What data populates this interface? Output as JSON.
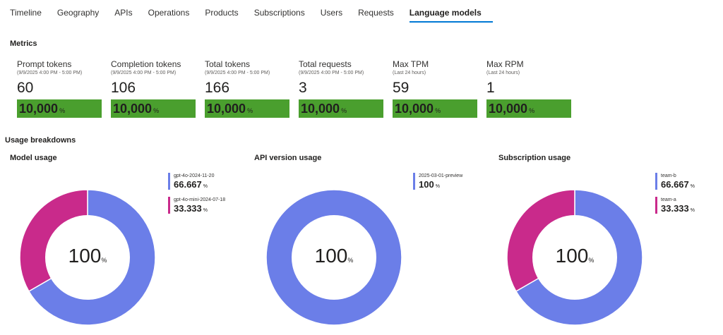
{
  "tabs": [
    "Timeline",
    "Geography",
    "APIs",
    "Operations",
    "Products",
    "Subscriptions",
    "Users",
    "Requests",
    "Language models"
  ],
  "active_tab": "Language models",
  "metrics_title": "Metrics",
  "metrics": [
    {
      "title": "Prompt tokens",
      "subtitle": "(9/9/2025 4:00 PM - 5:00 PM)",
      "value": "60",
      "bar_value": "10,000",
      "bar_unit": "%"
    },
    {
      "title": "Completion tokens",
      "subtitle": "(9/9/2025 4:00 PM - 5:00 PM)",
      "value": "106",
      "bar_value": "10,000",
      "bar_unit": "%"
    },
    {
      "title": "Total tokens",
      "subtitle": "(9/9/2025 4:00 PM - 5:00 PM)",
      "value": "166",
      "bar_value": "10,000",
      "bar_unit": "%"
    },
    {
      "title": "Total requests",
      "subtitle": "(9/9/2025 4:00 PM - 5:00 PM)",
      "value": "3",
      "bar_value": "10,000",
      "bar_unit": "%"
    },
    {
      "title": "Max TPM",
      "subtitle": "(Last 24 hours)",
      "value": "59",
      "bar_value": "10,000",
      "bar_unit": "%"
    },
    {
      "title": "Max RPM",
      "subtitle": "(Last 24 hours)",
      "value": "1",
      "bar_value": "10,000",
      "bar_unit": "%"
    }
  ],
  "usage_title": "Usage breakdowns",
  "colors": {
    "bar_green": "#4a9f2e",
    "blue": "#6b7ee8",
    "magenta": "#c92a8b",
    "tab_underline": "#0078d4"
  },
  "charts": [
    {
      "title": "Model usage",
      "center_value": "100",
      "center_unit": "%",
      "legend": [
        {
          "name": "gpt-4o-2024-11-20",
          "value": "66.667",
          "unit": "%",
          "color": "#6b7ee8"
        },
        {
          "name": "gpt-4o-mini-2024-07-18",
          "value": "33.333",
          "unit": "%",
          "color": "#c92a8b"
        }
      ]
    },
    {
      "title": "API version usage",
      "center_value": "100",
      "center_unit": "%",
      "legend": [
        {
          "name": "2025-03-01-preview",
          "value": "100",
          "unit": "%",
          "color": "#6b7ee8"
        }
      ]
    },
    {
      "title": "Subscription usage",
      "center_value": "100",
      "center_unit": "%",
      "legend": [
        {
          "name": "team-b",
          "value": "66.667",
          "unit": "%",
          "color": "#6b7ee8"
        },
        {
          "name": "team-a",
          "value": "33.333",
          "unit": "%",
          "color": "#c92a8b"
        }
      ]
    }
  ],
  "chart_data": [
    {
      "type": "pie",
      "title": "Model usage",
      "categories": [
        "gpt-4o-2024-11-20",
        "gpt-4o-mini-2024-07-18"
      ],
      "values": [
        66.667,
        33.333
      ]
    },
    {
      "type": "pie",
      "title": "API version usage",
      "categories": [
        "2025-03-01-preview"
      ],
      "values": [
        100
      ]
    },
    {
      "type": "pie",
      "title": "Subscription usage",
      "categories": [
        "team-b",
        "team-a"
      ],
      "values": [
        66.667,
        33.333
      ]
    }
  ]
}
